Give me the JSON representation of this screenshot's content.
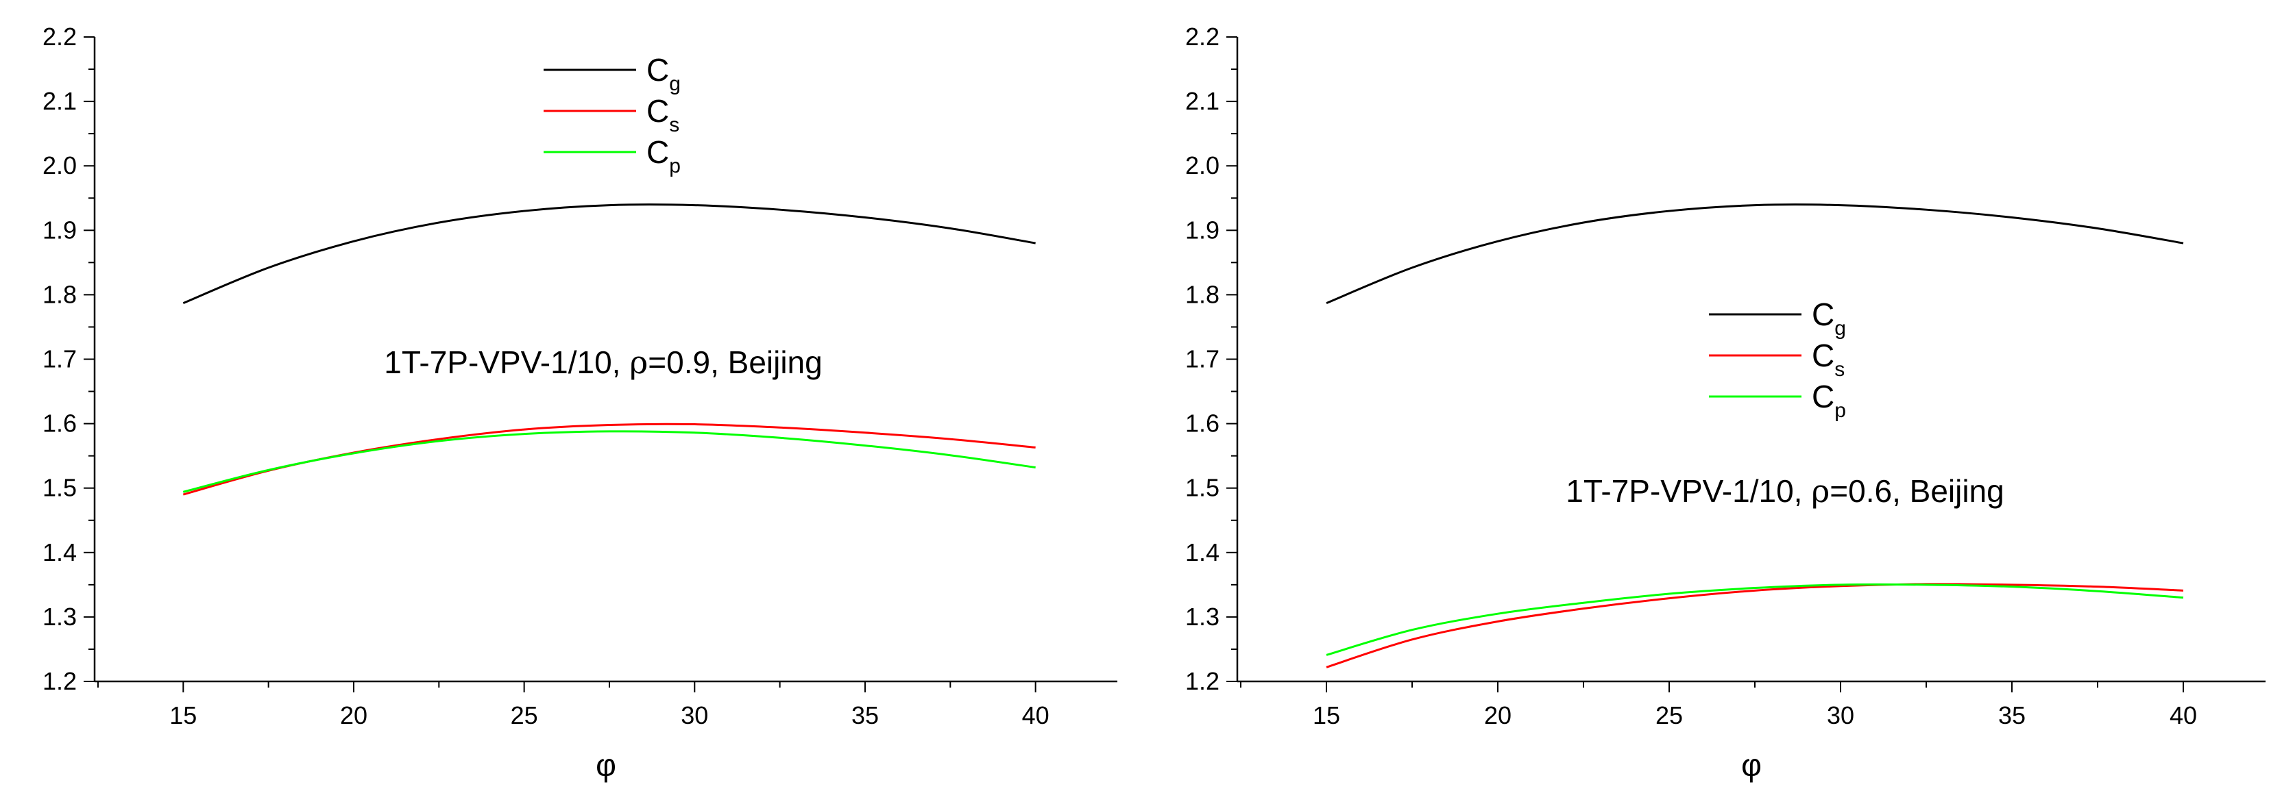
{
  "colors": {
    "Cg": "#000000",
    "Cs": "#ff0000",
    "Cp": "#00ff00",
    "axis": "#000000",
    "background": "#ffffff"
  },
  "chart_data": [
    {
      "type": "line",
      "xlabel": "φ",
      "ylabel": "",
      "xlim": [
        12.4,
        42.4
      ],
      "ylim": [
        1.2,
        2.2
      ],
      "x_ticks": [
        "15",
        "20",
        "25",
        "30",
        "35",
        "40"
      ],
      "y_ticks": [
        "1.2",
        "1.3",
        "1.4",
        "1.5",
        "1.6",
        "1.7",
        "1.8",
        "1.9",
        "2.0",
        "2.1",
        "2.2"
      ],
      "grid": false,
      "legend_position": "top-center",
      "annotation": {
        "prefix": "1T-7P-VPV-1/10, ",
        "symbol": "ρ",
        "suffix": "=0.9, Beijing"
      },
      "x": [
        15,
        17.5,
        20,
        22.5,
        25,
        27.5,
        30,
        32.5,
        35,
        37.5,
        40
      ],
      "series": [
        {
          "name": "Cg",
          "base": "C",
          "sub": "g",
          "color": "#000000",
          "values": [
            1.787,
            1.842,
            1.883,
            1.912,
            1.93,
            1.939,
            1.939,
            1.932,
            1.92,
            1.903,
            1.88
          ]
        },
        {
          "name": "Cs",
          "base": "C",
          "sub": "s",
          "color": "#ff0000",
          "values": [
            1.49,
            1.527,
            1.555,
            1.576,
            1.591,
            1.598,
            1.599,
            1.594,
            1.586,
            1.576,
            1.563
          ]
        },
        {
          "name": "Cp",
          "base": "C",
          "sub": "p",
          "color": "#00ff00",
          "values": [
            1.494,
            1.528,
            1.554,
            1.573,
            1.584,
            1.588,
            1.586,
            1.578,
            1.566,
            1.551,
            1.532
          ]
        }
      ]
    },
    {
      "type": "line",
      "xlabel": "φ",
      "ylabel": "",
      "xlim": [
        12.4,
        42.4
      ],
      "ylim": [
        1.2,
        2.2
      ],
      "x_ticks": [
        "15",
        "20",
        "25",
        "30",
        "35",
        "40"
      ],
      "y_ticks": [
        "1.2",
        "1.3",
        "1.4",
        "1.5",
        "1.6",
        "1.7",
        "1.8",
        "1.9",
        "2.0",
        "2.1",
        "2.2"
      ],
      "grid": false,
      "legend_position": "center",
      "annotation": {
        "prefix": "1T-7P-VPV-1/10, ",
        "symbol": "ρ",
        "suffix": "=0.6, Beijing"
      },
      "x": [
        15,
        17.5,
        20,
        22.5,
        25,
        27.5,
        30,
        32.5,
        35,
        37.5,
        40
      ],
      "series": [
        {
          "name": "Cg",
          "base": "C",
          "sub": "g",
          "color": "#000000",
          "values": [
            1.787,
            1.842,
            1.883,
            1.912,
            1.93,
            1.939,
            1.939,
            1.932,
            1.92,
            1.903,
            1.88
          ]
        },
        {
          "name": "Cs",
          "base": "C",
          "sub": "s",
          "color": "#ff0000",
          "values": [
            1.222,
            1.265,
            1.293,
            1.313,
            1.329,
            1.341,
            1.348,
            1.351,
            1.35,
            1.347,
            1.341
          ]
        },
        {
          "name": "Cp",
          "base": "C",
          "sub": "p",
          "color": "#00ff00",
          "values": [
            1.241,
            1.28,
            1.305,
            1.322,
            1.336,
            1.345,
            1.35,
            1.35,
            1.347,
            1.34,
            1.33
          ]
        }
      ]
    }
  ]
}
